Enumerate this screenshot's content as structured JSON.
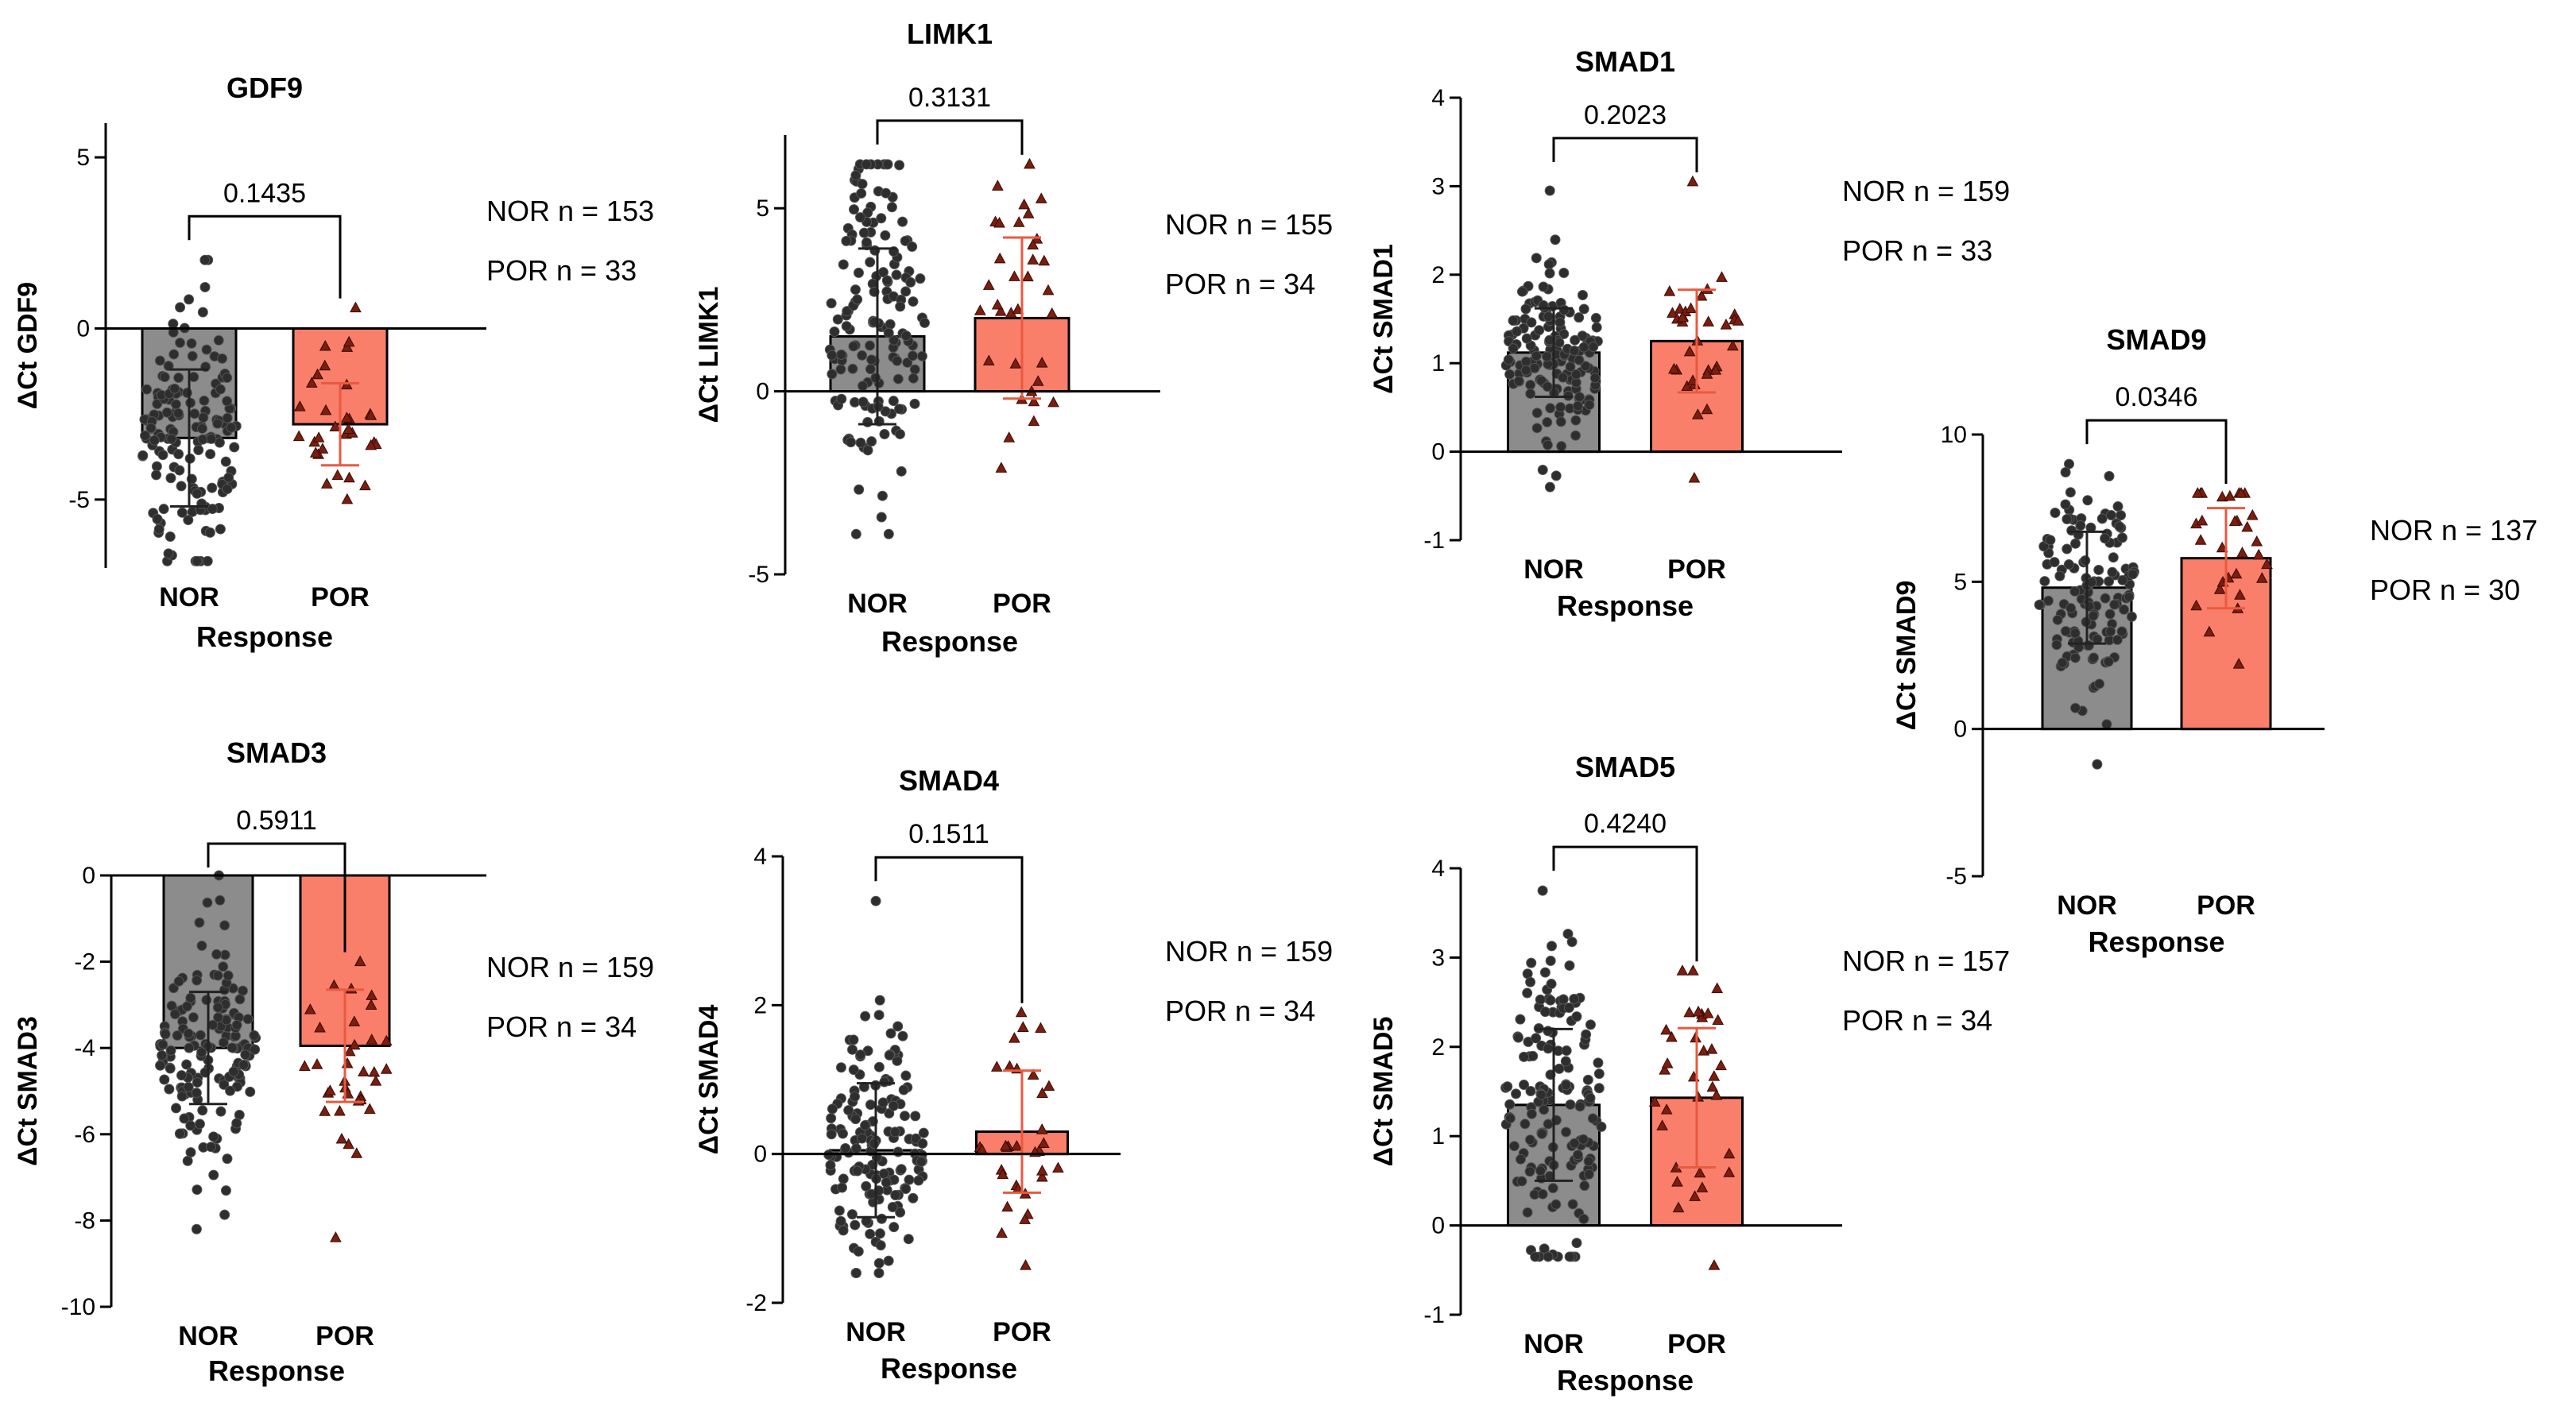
{
  "colors": {
    "nor": "#8c8c8c",
    "por": "#fa7f6a",
    "nor_dot": "#2e2e2e",
    "por_err": "#e85a40",
    "axis": "#000000"
  },
  "chart_data": [
    {
      "type": "bar",
      "title": "GDF9",
      "ylabel": "ΔCt GDF9",
      "xlabel": "Response",
      "categories": [
        "NOR",
        "POR"
      ],
      "ylim": [
        -7,
        6
      ],
      "yticks": [
        -5,
        0,
        5
      ],
      "ytick_labels": [
        "-5",
        "0",
        "5"
      ],
      "values": [
        -3.2,
        -2.8
      ],
      "sd": [
        2.0,
        1.2
      ],
      "ranges": [
        [
          -6.8,
          2.0
        ],
        [
          -5.0,
          0.6
        ]
      ],
      "n": [
        153,
        33
      ],
      "p_value": "0.1435",
      "n_labels": [
        "NOR  n = 153",
        "POR  n = 33"
      ]
    },
    {
      "type": "bar",
      "title": "LIMK1",
      "ylabel": "ΔCt LIMK1",
      "xlabel": "Response",
      "categories": [
        "NOR",
        "POR"
      ],
      "ylim": [
        -5,
        7
      ],
      "yticks": [
        -5,
        0,
        5
      ],
      "ytick_labels": [
        "-5",
        "0",
        "5"
      ],
      "values": [
        1.5,
        2.0
      ],
      "sd": [
        2.4,
        2.2
      ],
      "ranges": [
        [
          -3.9,
          6.2
        ],
        [
          -2.1,
          6.2
        ]
      ],
      "n": [
        155,
        34
      ],
      "p_value": "0.3131",
      "n_labels": [
        "NOR  n = 155",
        "POR  n = 34"
      ]
    },
    {
      "type": "bar",
      "title": "SMAD1",
      "ylabel": "ΔCt SMAD1",
      "xlabel": "Response",
      "categories": [
        "NOR",
        "POR"
      ],
      "ylim": [
        -1,
        4
      ],
      "yticks": [
        -1,
        0,
        1,
        2,
        3,
        4
      ],
      "ytick_labels": [
        "-1",
        "0",
        "1",
        "2",
        "3",
        "4"
      ],
      "values": [
        1.12,
        1.25
      ],
      "sd": [
        0.5,
        0.58
      ],
      "ranges": [
        [
          -0.4,
          2.95
        ],
        [
          -0.3,
          3.05
        ]
      ],
      "n": [
        159,
        33
      ],
      "p_value": "0.2023",
      "n_labels": [
        "NOR  n = 159",
        "POR  n = 33"
      ]
    },
    {
      "type": "bar",
      "title": "SMAD9",
      "ylabel": "ΔCt SMAD9",
      "xlabel": "Response",
      "categories": [
        "NOR",
        "POR"
      ],
      "ylim": [
        -5,
        10
      ],
      "yticks": [
        -5,
        0,
        5,
        10
      ],
      "ytick_labels": [
        "-5",
        "0",
        "5",
        "10"
      ],
      "values": [
        4.8,
        5.8
      ],
      "sd": [
        1.9,
        1.7
      ],
      "ranges": [
        [
          -1.2,
          9.0
        ],
        [
          2.2,
          8.0
        ]
      ],
      "n": [
        137,
        30
      ],
      "p_value": "0.0346",
      "n_labels": [
        "NOR  n = 137",
        "POR  n = 30"
      ]
    },
    {
      "type": "bar",
      "title": "SMAD3",
      "ylabel": "ΔCt SMAD3",
      "xlabel": "Response",
      "categories": [
        "NOR",
        "POR"
      ],
      "ylim": [
        -10,
        0
      ],
      "yticks": [
        -10,
        -8,
        -6,
        -4,
        -2,
        0
      ],
      "ytick_labels": [
        "-10",
        "-8",
        "-6",
        "-4",
        "-2",
        "0"
      ],
      "values": [
        -4.0,
        -3.95
      ],
      "sd": [
        1.3,
        1.3
      ],
      "ranges": [
        [
          -8.2,
          0.0
        ],
        [
          -8.4,
          -2.0
        ]
      ],
      "n": [
        159,
        34
      ],
      "p_value": "0.5911",
      "n_labels": [
        "NOR  n = 159",
        "POR  n = 34"
      ]
    },
    {
      "type": "bar",
      "title": "SMAD4",
      "ylabel": "ΔCt SMAD4",
      "xlabel": "Response",
      "categories": [
        "NOR",
        "POR"
      ],
      "ylim": [
        -2,
        4
      ],
      "yticks": [
        -2,
        0,
        2,
        4
      ],
      "ytick_labels": [
        "-2",
        "0",
        "2",
        "4"
      ],
      "values": [
        0.05,
        0.3
      ],
      "sd": [
        0.9,
        0.82
      ],
      "ranges": [
        [
          -1.6,
          3.4
        ],
        [
          -1.5,
          1.9
        ]
      ],
      "n": [
        159,
        34
      ],
      "p_value": "0.1511",
      "n_labels": [
        "NOR  n = 159",
        "POR  n = 34"
      ]
    },
    {
      "type": "bar",
      "title": "SMAD5",
      "ylabel": "ΔCt SMAD5",
      "xlabel": "Response",
      "categories": [
        "NOR",
        "POR"
      ],
      "ylim": [
        -1,
        4
      ],
      "yticks": [
        -1,
        0,
        1,
        2,
        3,
        4
      ],
      "ytick_labels": [
        "-1",
        "0",
        "1",
        "2",
        "3",
        "4"
      ],
      "values": [
        1.35,
        1.43
      ],
      "sd": [
        0.85,
        0.78
      ],
      "ranges": [
        [
          -0.35,
          3.75
        ],
        [
          -0.45,
          2.85
        ]
      ],
      "n": [
        157,
        34
      ],
      "p_value": "0.4240",
      "n_labels": [
        "NOR  n = 157",
        "POR  n = 34"
      ]
    }
  ]
}
